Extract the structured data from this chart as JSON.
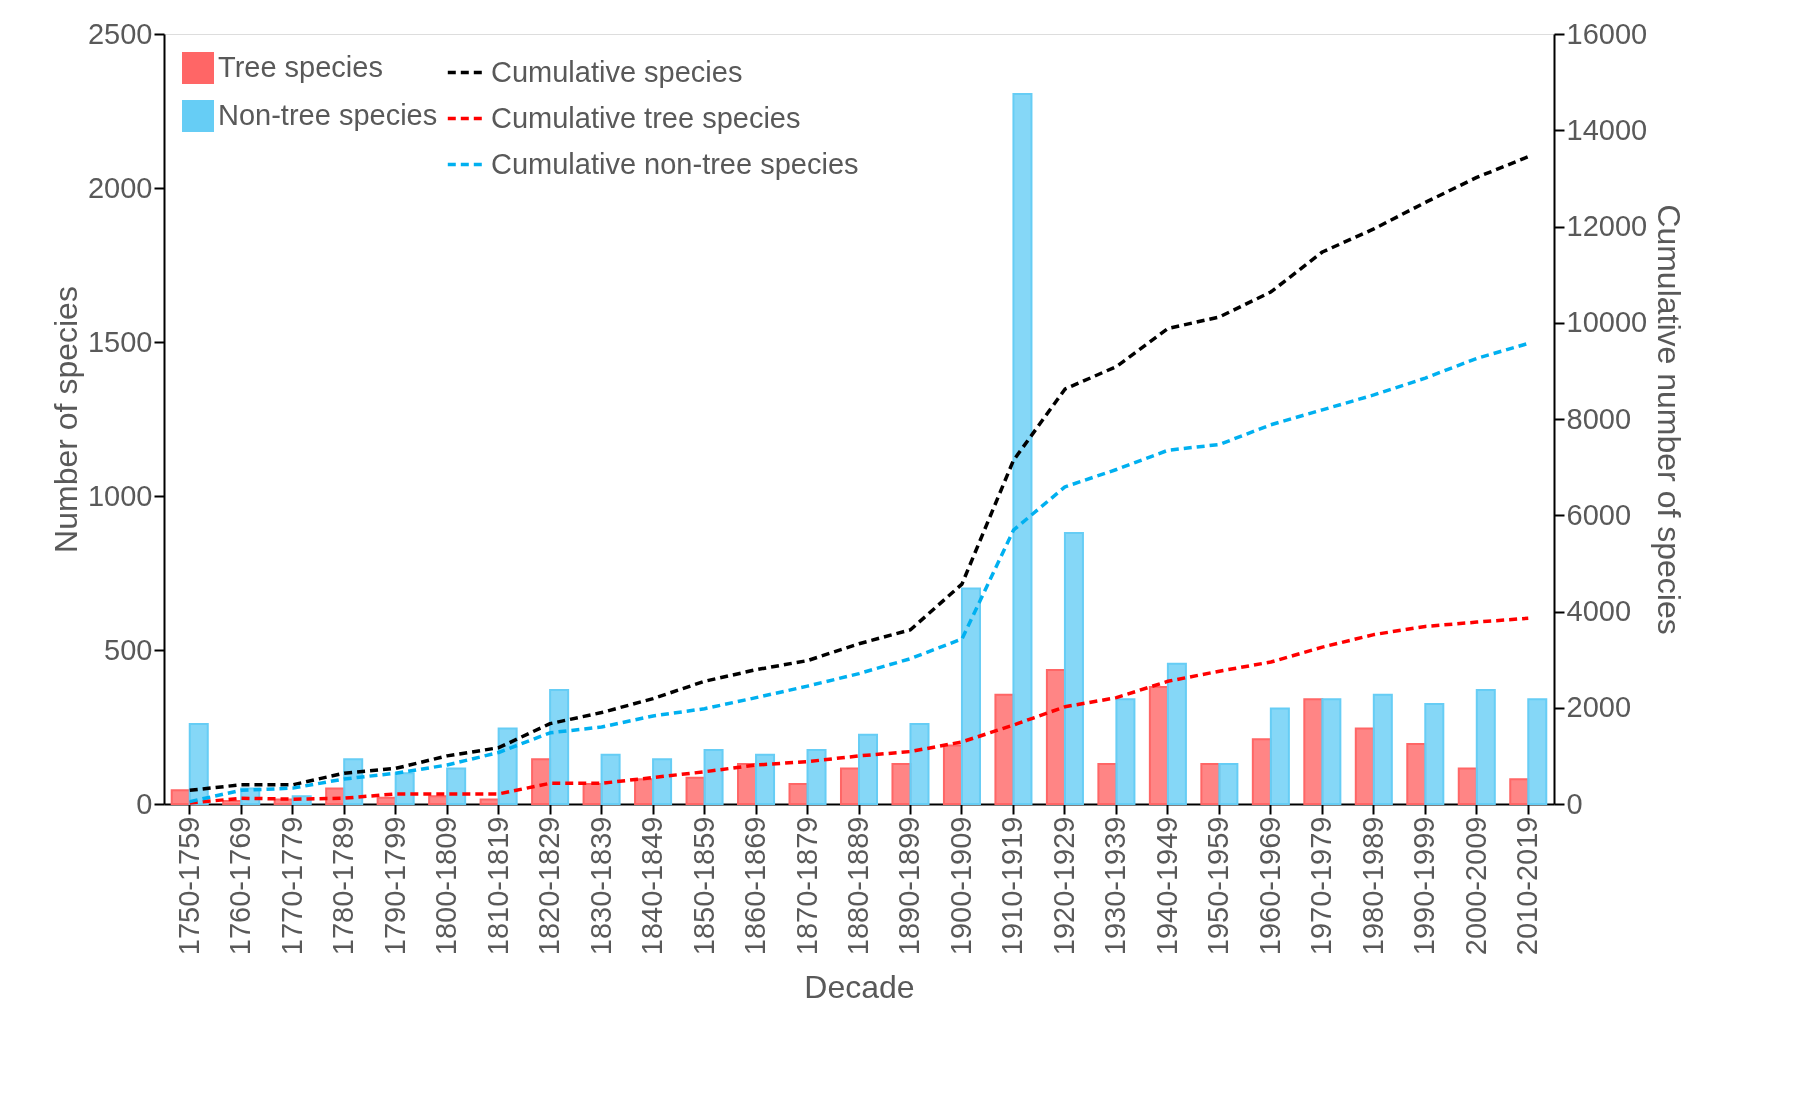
{
  "chart_data": {
    "type": "bar",
    "xlabel": "Decade",
    "ylabel": "Number of species",
    "y2label": "Cumulative number of species",
    "categories": [
      "1750-1759",
      "1760-1769",
      "1770-1779",
      "1780-1789",
      "1790-1799",
      "1800-1809",
      "1810-1819",
      "1820-1829",
      "1830-1839",
      "1840-1849",
      "1850-1859",
      "1860-1869",
      "1870-1879",
      "1880-1889",
      "1890-1899",
      "1900-1909",
      "1910-1919",
      "1920-1929",
      "1930-1939",
      "1940-1949",
      "1950-1959",
      "1960-1969",
      "1970-1979",
      "1980-1989",
      "1990-1999",
      "2000-2009",
      "2010-2019"
    ],
    "series": [
      {
        "name": "Tree species",
        "color": "#ff6666",
        "values": [
          45,
          10,
          15,
          50,
          20,
          25,
          15,
          145,
          65,
          80,
          85,
          130,
          65,
          115,
          130,
          190,
          355,
          435,
          130,
          380,
          130,
          210,
          340,
          245,
          195,
          115,
          80
        ]
      },
      {
        "name": "Non-tree species",
        "color": "#66cdf5",
        "values": [
          260,
          50,
          25,
          145,
          100,
          115,
          245,
          370,
          160,
          145,
          175,
          160,
          175,
          225,
          260,
          700,
          2305,
          880,
          340,
          455,
          130,
          310,
          340,
          355,
          325,
          370,
          340
        ]
      },
      {
        "name": "Cumulative species",
        "type": "line",
        "axis": "y2",
        "color": "#000000",
        "values": [
          285,
          400,
          400,
          640,
          740,
          1000,
          1170,
          1670,
          1900,
          2190,
          2550,
          2790,
          2980,
          3330,
          3620,
          4570,
          7140,
          8620,
          9090,
          9880,
          10120,
          10640,
          11470,
          11950,
          12500,
          13020,
          13450
        ]
      },
      {
        "name": "Cumulative tree species",
        "type": "line",
        "axis": "y2",
        "color": "#ff0000",
        "values": [
          20,
          120,
          100,
          120,
          210,
          210,
          210,
          430,
          430,
          550,
          670,
          810,
          880,
          1000,
          1090,
          1290,
          1640,
          2020,
          2210,
          2550,
          2760,
          2950,
          3260,
          3520,
          3690,
          3780,
          3860
        ]
      },
      {
        "name": "Cumulative non-tree species",
        "type": "line",
        "axis": "y2",
        "color": "#00b0f0",
        "values": [
          50,
          285,
          330,
          520,
          640,
          810,
          1070,
          1480,
          1600,
          1830,
          1980,
          2210,
          2450,
          2710,
          3020,
          3430,
          5690,
          6590,
          6950,
          7350,
          7470,
          7880,
          8190,
          8500,
          8850,
          9260,
          9570
        ]
      }
    ],
    "ylim": [
      0,
      2500
    ],
    "yticks": [
      0,
      500,
      1000,
      1500,
      2000,
      2500
    ],
    "y2lim": [
      0,
      16000
    ],
    "y2ticks": [
      0,
      2000,
      4000,
      6000,
      8000,
      10000,
      12000,
      14000,
      16000
    ],
    "legend": "top left",
    "grid": false,
    "line_style": "dashed",
    "marker": "none"
  }
}
